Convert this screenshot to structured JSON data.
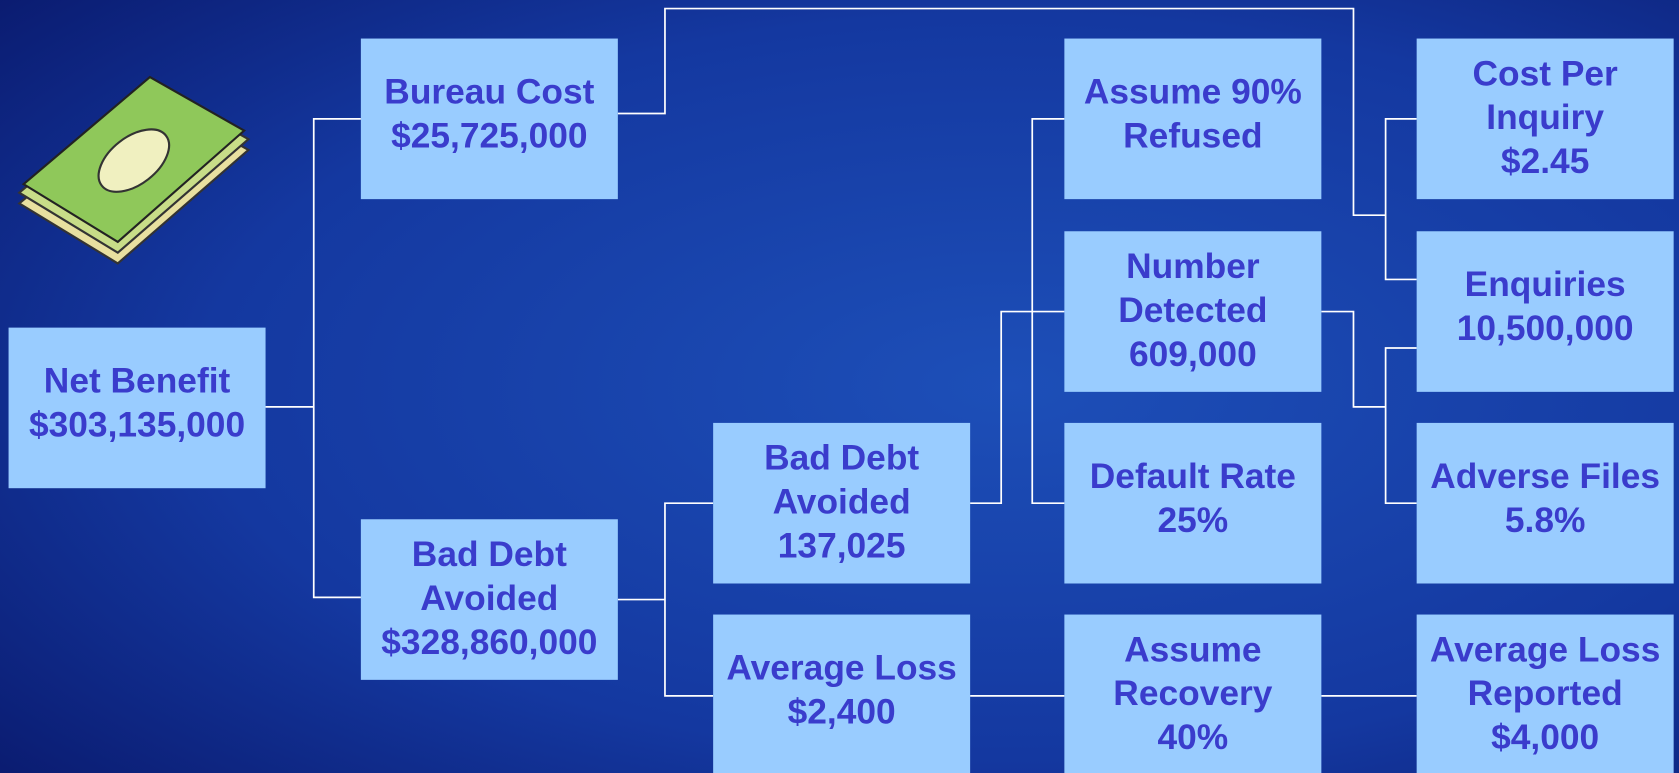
{
  "nodes": [
    {
      "lines": [
        "Net Benefit",
        "$303,135,000"
      ]
    },
    {
      "lines": [
        "Bureau Cost",
        "$25,725,000"
      ]
    },
    {
      "lines": [
        "Bad Debt",
        "Avoided",
        "$328,860,000"
      ]
    },
    {
      "lines": [
        "Bad Debt",
        "Avoided",
        "137,025"
      ]
    },
    {
      "lines": [
        "Average Loss",
        "$2,400"
      ]
    },
    {
      "lines": [
        "Assume 90%",
        "Refused"
      ]
    },
    {
      "lines": [
        "Number",
        "Detected",
        "609,000"
      ]
    },
    {
      "lines": [
        "Default Rate",
        "25%"
      ]
    },
    {
      "lines": [
        "Assume",
        "Recovery",
        "40%"
      ]
    },
    {
      "lines": [
        "Cost Per",
        "Inquiry",
        "$2.45"
      ]
    },
    {
      "lines": [
        "Enquiries",
        "10,500,000"
      ]
    },
    {
      "lines": [
        "Adverse Files",
        "5.8%"
      ]
    },
    {
      "lines": [
        "Average Loss",
        "Reported",
        "$4,000"
      ]
    }
  ]
}
